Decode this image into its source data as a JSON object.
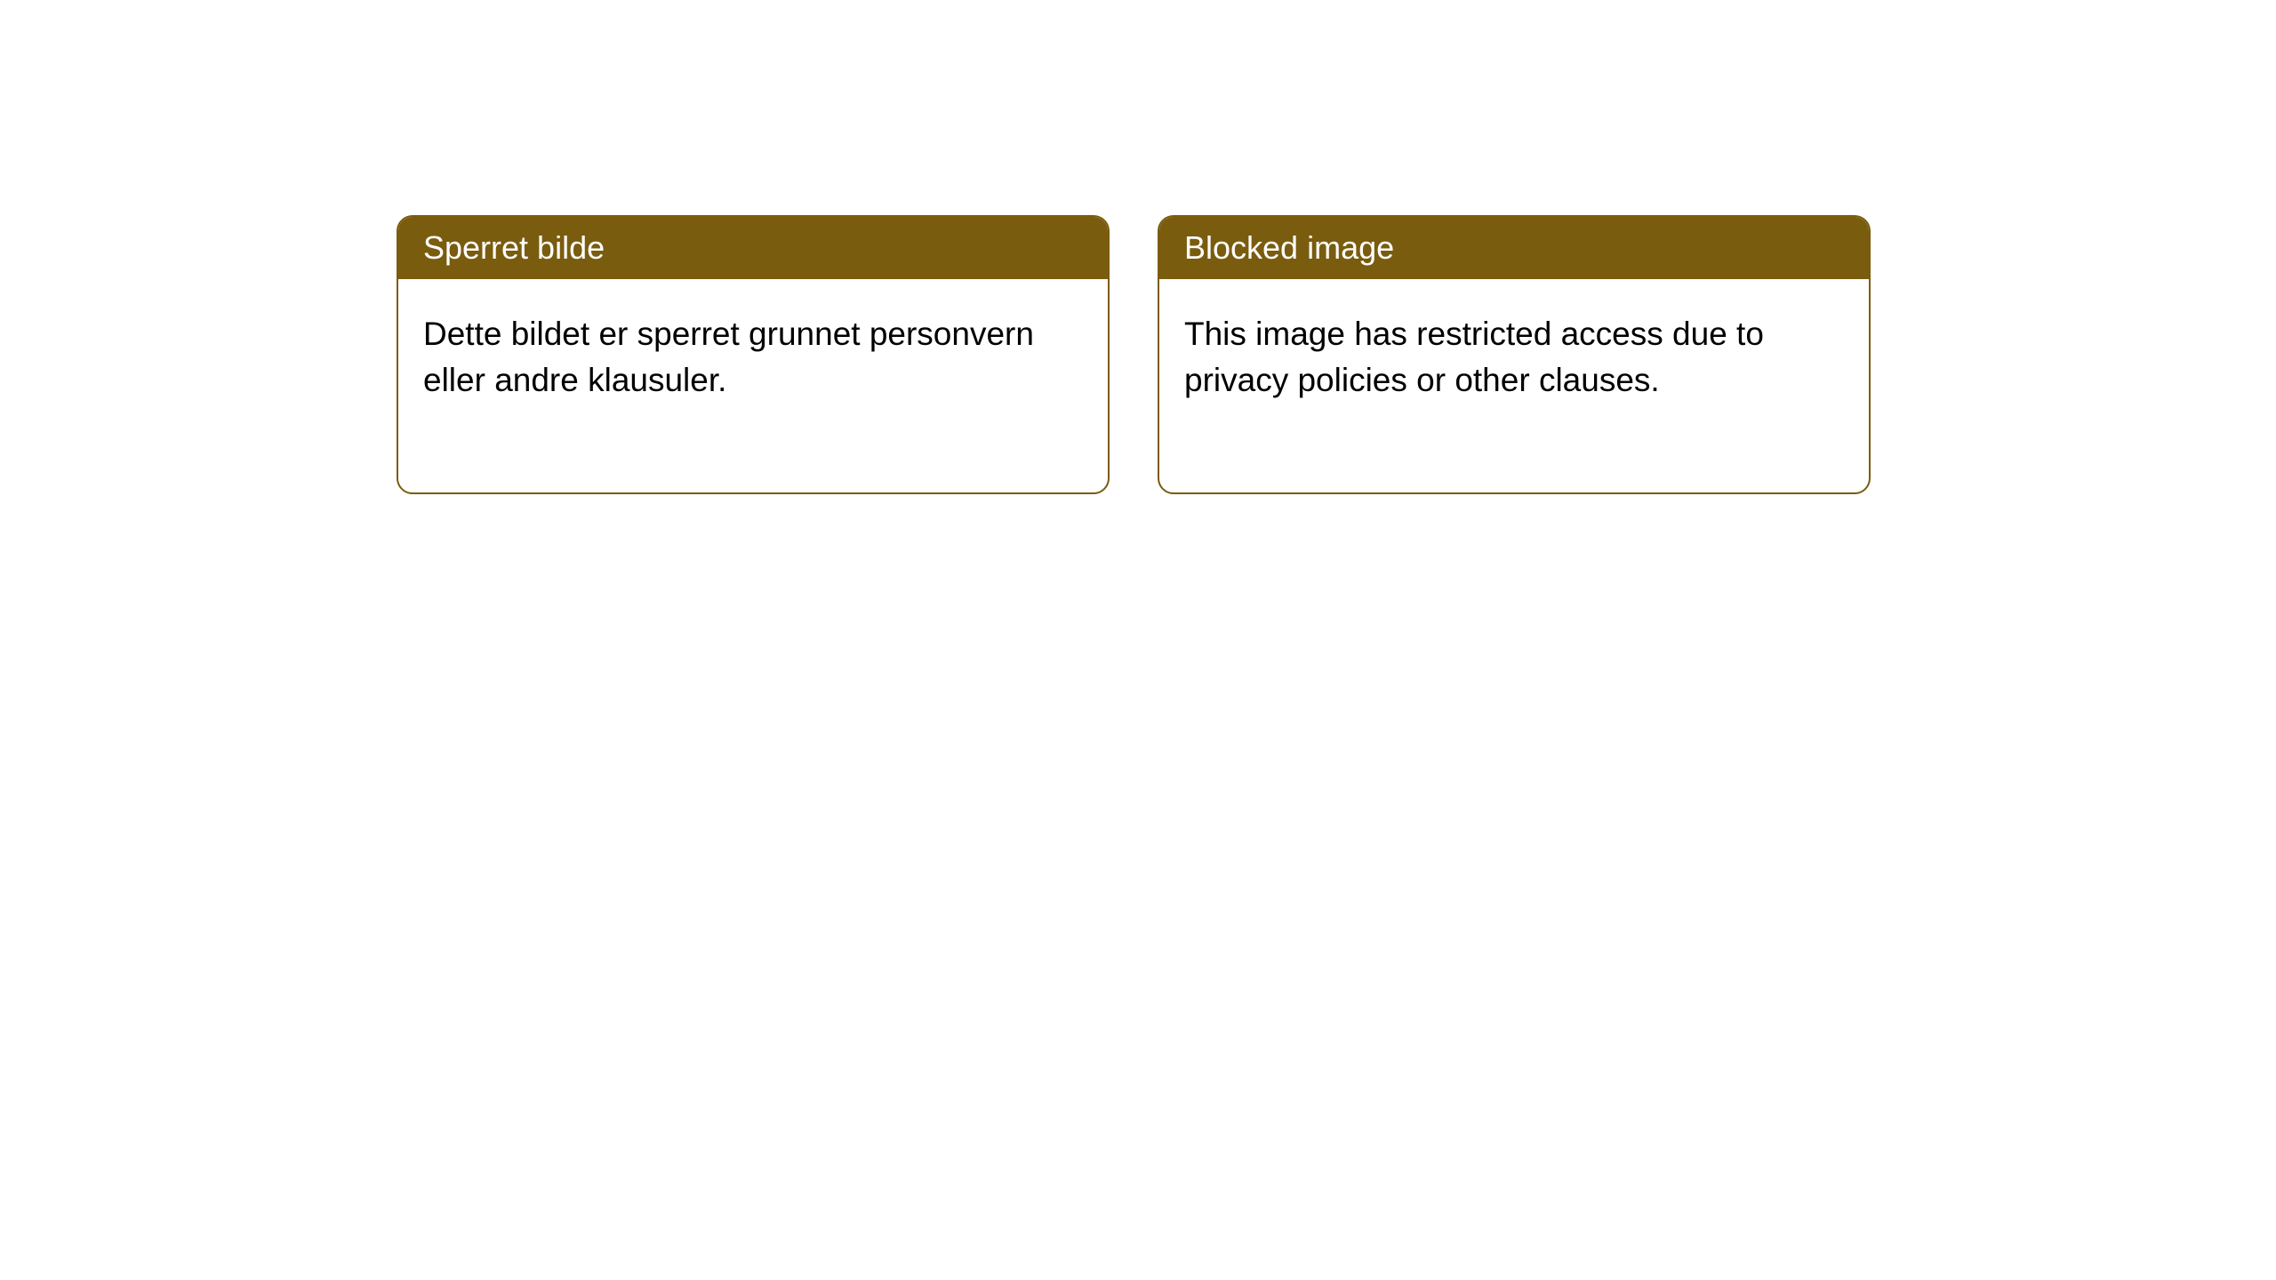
{
  "styling": {
    "header_bg_color": "#7a5c0f",
    "header_text_color": "#ffffff",
    "card_border_color": "#7a5c0f",
    "card_bg_color": "#ffffff",
    "body_text_color": "#000000",
    "page_bg_color": "#ffffff",
    "border_radius": 18,
    "header_fontsize": 36,
    "body_fontsize": 37
  },
  "cards": [
    {
      "header": "Sperret bilde",
      "body": "Dette bildet er sperret grunnet personvern eller andre klausuler."
    },
    {
      "header": "Blocked image",
      "body": "This image has restricted access due to privacy policies or other clauses."
    }
  ]
}
